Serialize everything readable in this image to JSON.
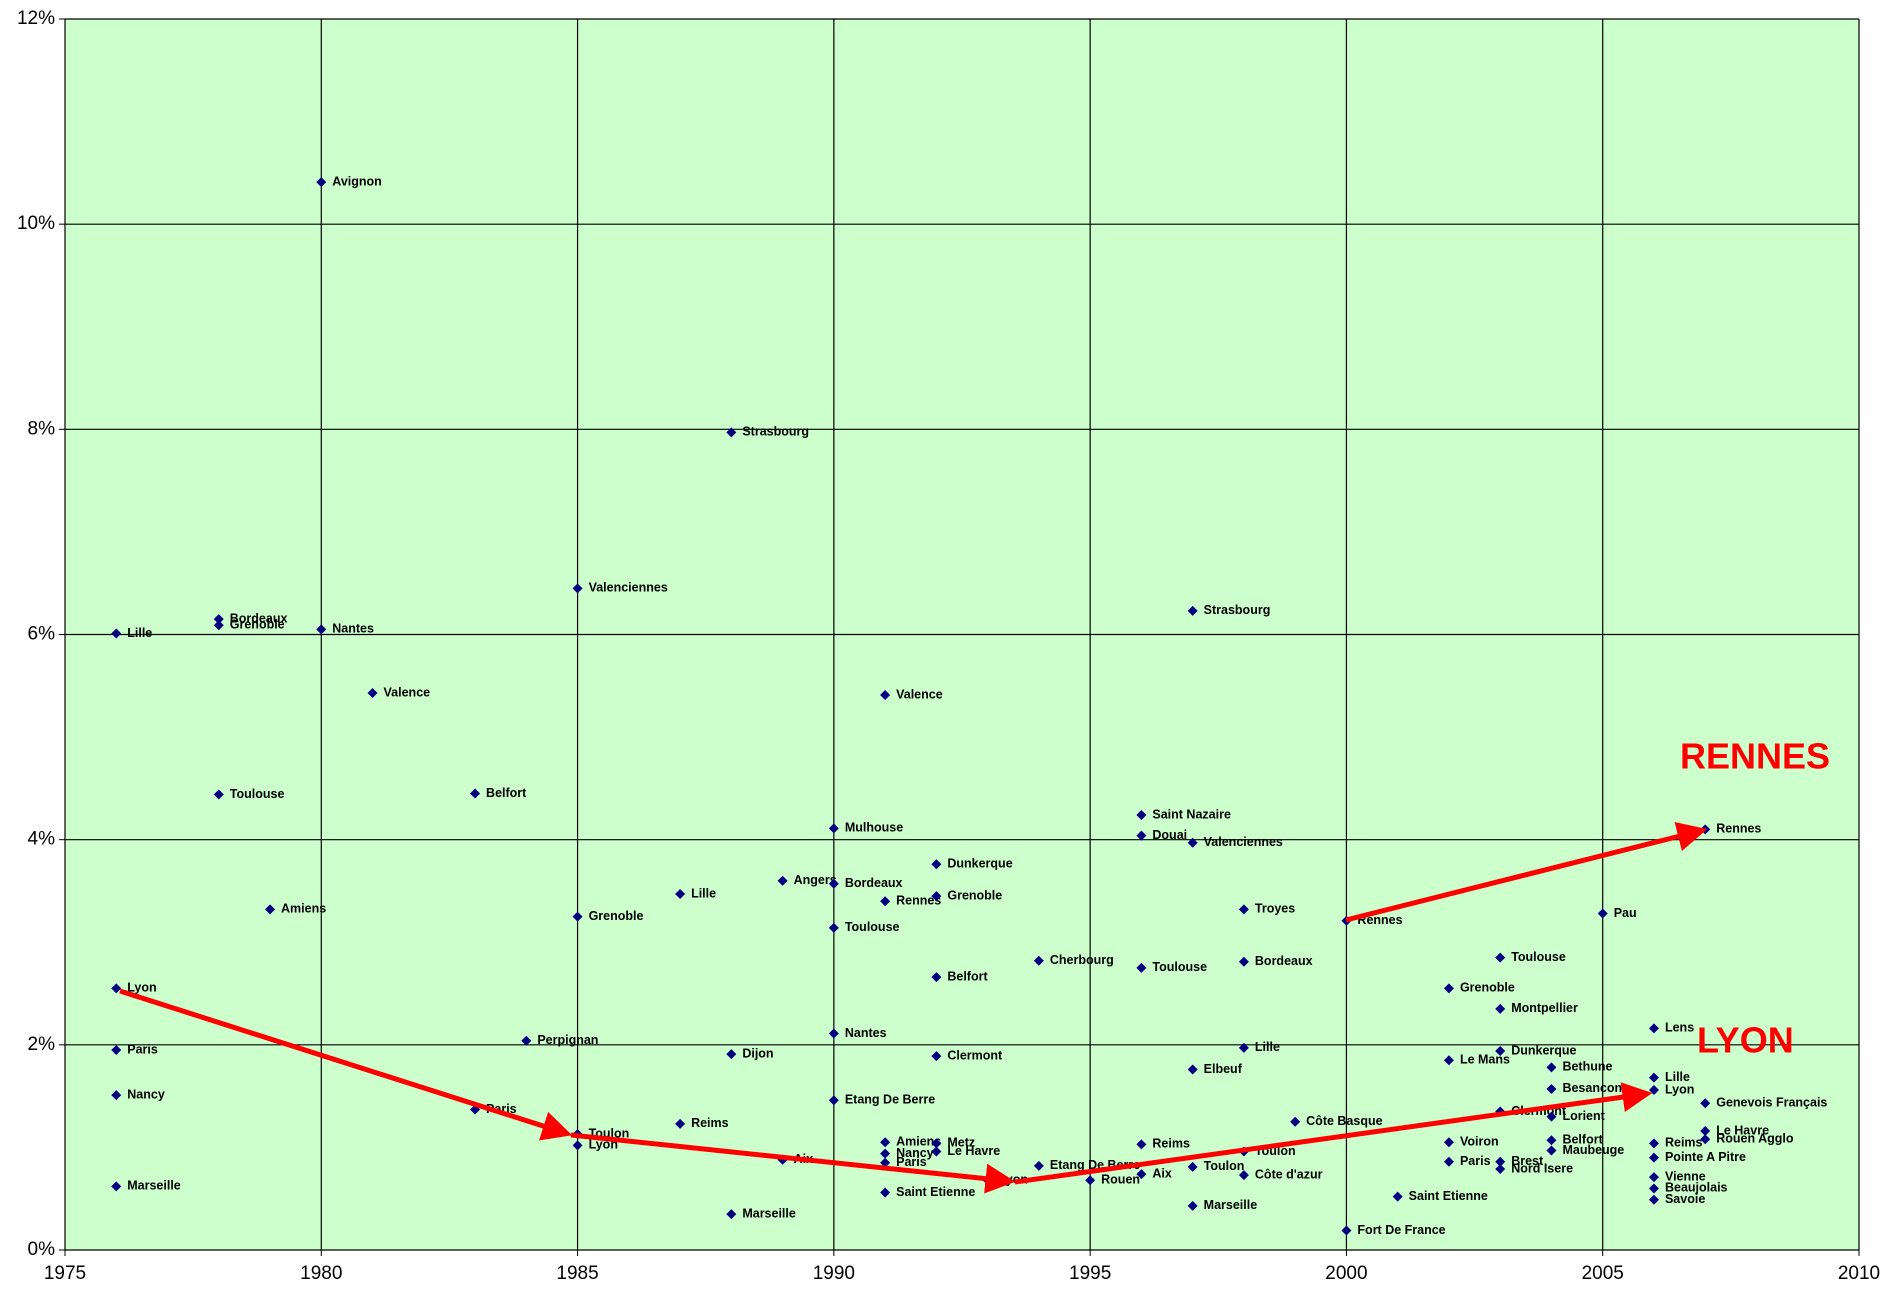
{
  "chart_data": {
    "type": "scatter",
    "xlim": [
      1975,
      2010
    ],
    "xticks": [
      1975,
      1980,
      1985,
      1990,
      1995,
      2000,
      2005,
      2010
    ],
    "ylim": [
      0,
      12
    ],
    "yticks": [
      {
        "value": 0,
        "label": "0%"
      },
      {
        "value": 2,
        "label": "2%"
      },
      {
        "value": 4,
        "label": "4%"
      },
      {
        "value": 6,
        "label": "6%"
      },
      {
        "value": 8,
        "label": "8%"
      },
      {
        "value": 10,
        "label": "10%"
      },
      {
        "value": 12,
        "label": "12%"
      }
    ],
    "grid": true,
    "background": "#ccffcc",
    "color": "#000080",
    "annotations": [
      {
        "text": "RENNES",
        "color": "#ff0000"
      },
      {
        "text": "LYON",
        "color": "#ff0000"
      }
    ],
    "series": [
      {
        "color": "#000080",
        "x": [
          1980,
          1988,
          1985,
          1978,
          1978,
          1976,
          1980,
          1981,
          1978,
          1983,
          1979,
          1976,
          1976,
          1976,
          1976,
          1984,
          1983,
          1985,
          1985,
          1985,
          1987,
          1989,
          1987,
          1988,
          1988,
          1989,
          1991,
          1991,
          1991,
          1991,
          1990,
          1990,
          1990,
          1990,
          1990,
          1991,
          1991,
          1992,
          1992,
          1992,
          1994,
          1992,
          1992,
          1992,
          1993,
          1995,
          1994,
          1996,
          1996,
          1996,
          1996,
          1996,
          1997,
          1997,
          1997,
          1997,
          1997,
          1998,
          1998,
          1998,
          1998,
          1998,
          1999,
          2000,
          2000,
          2001,
          2002,
          2002,
          2002,
          2002,
          2003,
          2003,
          2003,
          2003,
          2003,
          2003,
          2004,
          2004,
          2004,
          2004,
          2004,
          2005,
          2006,
          2006,
          2006,
          2006,
          2006,
          2006,
          2006,
          2006,
          2007,
          2007,
          2007,
          2007
        ],
        "values": [
          10.41,
          7.97,
          6.45,
          6.15,
          6.09,
          6.01,
          6.05,
          5.43,
          4.44,
          4.45,
          3.32,
          2.55,
          1.95,
          1.51,
          0.62,
          2.04,
          1.37,
          3.25,
          1.13,
          1.02,
          1.23,
          3.6,
          3.47,
          1.91,
          0.35,
          0.88,
          1.05,
          0.94,
          0.85,
          0.56,
          4.11,
          3.57,
          3.14,
          2.11,
          1.46,
          5.41,
          3.4,
          3.76,
          3.45,
          2.66,
          2.82,
          1.89,
          1.04,
          0.96,
          0.68,
          0.68,
          0.82,
          0.74,
          1.03,
          2.75,
          4.04,
          4.24,
          6.23,
          3.97,
          1.76,
          0.81,
          0.43,
          3.32,
          2.81,
          1.97,
          0.73,
          0.96,
          1.25,
          3.21,
          0.19,
          0.52,
          2.55,
          1.85,
          1.05,
          0.86,
          2.85,
          2.35,
          1.94,
          1.35,
          0.86,
          0.79,
          1.78,
          1.57,
          1.3,
          1.07,
          0.97,
          3.28,
          2.16,
          1.68,
          1.56,
          1.04,
          0.9,
          0.71,
          0.6,
          0.49,
          4.1,
          1.43,
          1.16,
          1.08
        ],
        "point_labels": [
          "Avignon",
          "Strasbourg",
          "Valenciennes",
          "Bordeaux",
          "Grenoble",
          "Lille",
          "Nantes",
          "Valence",
          "Toulouse",
          "Belfort",
          "Amiens",
          "Lyon",
          "Paris",
          "Nancy",
          "Marseille",
          "Perpignan",
          "Paris",
          "Grenoble",
          "Toulon",
          "Lyon",
          "Reims",
          "Angers",
          "Lille",
          "Dijon",
          "Marseille",
          "Aix",
          "Amiens",
          "Nancy",
          "Paris",
          "Saint Etienne",
          "Mulhouse",
          "Bordeaux",
          "Toulouse",
          "Nantes",
          "Etang De Berre",
          "Valence",
          "Rennes",
          "Dunkerque",
          "Grenoble",
          "Belfort",
          "Cherbourg",
          "Clermont",
          "Metz",
          "Le Havre",
          "Lyon",
          "Rouen",
          "Etang De Berre",
          "Aix",
          "Reims",
          "Toulouse",
          "Douai",
          "Saint Nazaire",
          "Strasbourg",
          "Valenciennes",
          "Elbeuf",
          "Toulon",
          "Marseille",
          "Troyes",
          "Bordeaux",
          "Lille",
          "Côte d'azur",
          "Toulon",
          "Côte Basque",
          "Rennes",
          "Fort De France",
          "Saint Etienne",
          "Grenoble",
          "Le Mans",
          "Voiron",
          "Paris",
          "Toulouse",
          "Montpellier",
          "Dunkerque",
          "Clermont",
          "Brest",
          "Nord Isere",
          "Bethune",
          "Besancon",
          "Lorient",
          "Belfort",
          "Maubeuge",
          "Pau",
          "Lens",
          "Lille",
          "Lyon",
          "Reims",
          "Pointe A Pitre",
          "Vienne",
          "Beaujolais",
          "Savoie",
          "Rennes",
          "Genevois Français",
          "Le Havre",
          "Rouen Agglo"
        ]
      }
    ]
  }
}
